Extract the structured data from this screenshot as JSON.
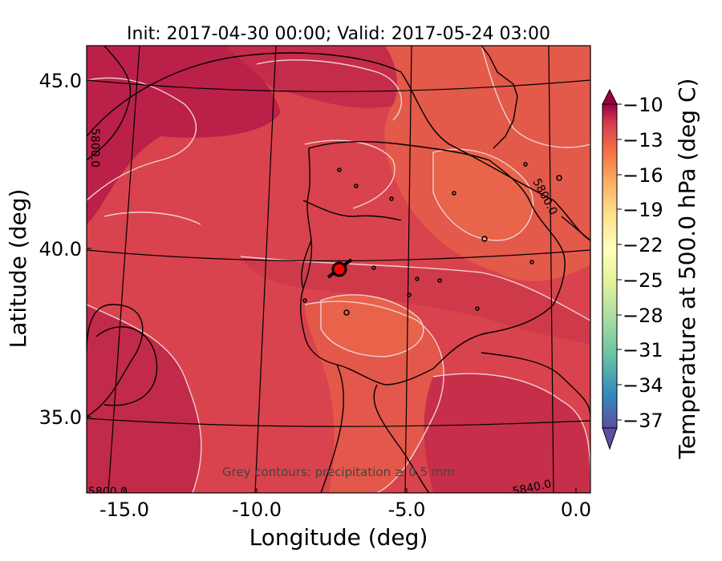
{
  "chart_data": {
    "type": "map",
    "title": "Init: 2017-04-30 00:00; Valid: 2017-05-24 03:00",
    "xlabel": "Longitude (deg)",
    "ylabel": "Latitude (deg)",
    "xticks": [
      "-15.0",
      "-10.0",
      "-5.0",
      "0.0"
    ],
    "yticks": [
      "45.0",
      "40.0",
      "35.0"
    ],
    "xlim": [
      -16,
      0.2
    ],
    "ylim": [
      32.6,
      46.2
    ],
    "colorbar": {
      "label": "Temperature at 500.0 hPa (deg C)",
      "ticks": [
        "−10",
        "−13",
        "−16",
        "−19",
        "−22",
        "−25",
        "−28",
        "−31",
        "−34",
        "−37"
      ],
      "range": [
        -38,
        -10
      ],
      "extend": "both"
    },
    "contour_labels": [
      "5800.0",
      "5800.0",
      "5800.0",
      "5840.0"
    ],
    "annotation": "Grey contours: precipitation ≥ 0.5 mm",
    "marker": {
      "lon": -7.7,
      "lat": 39.3,
      "color": "#ff0000"
    }
  },
  "colors": {
    "background_field": "#d9434d",
    "warm_high": "#bb2049",
    "warm_mid": "#e05b48",
    "warm_low": "#f08050"
  }
}
